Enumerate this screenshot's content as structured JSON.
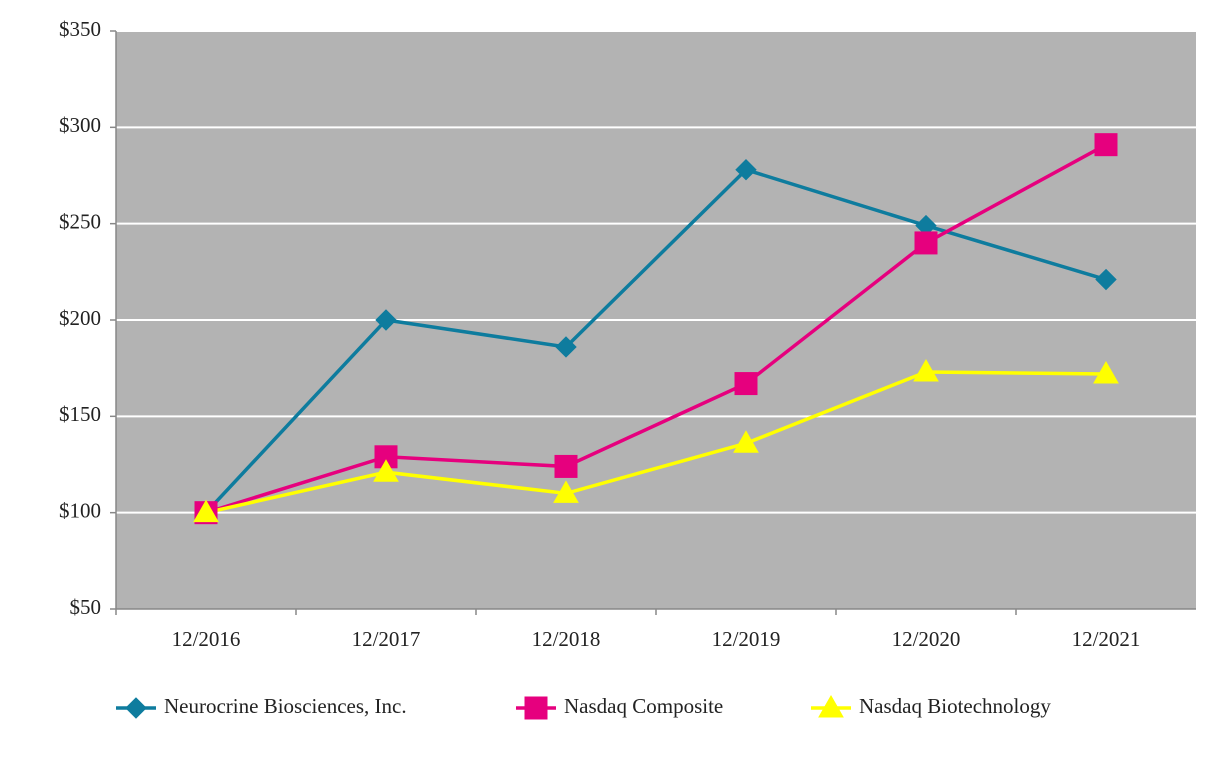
{
  "chart_data": {
    "type": "line",
    "categories": [
      "12/2016",
      "12/2017",
      "12/2018",
      "12/2019",
      "12/2020",
      "12/2021"
    ],
    "series": [
      {
        "name": "Neurocrine Biosciences, Inc.",
        "color": "#0e7c9e",
        "marker": "diamond",
        "values": [
          100,
          200,
          186,
          278,
          249,
          221
        ]
      },
      {
        "name": "Nasdaq Composite",
        "color": "#e6007e",
        "marker": "square",
        "values": [
          100,
          129,
          124,
          167,
          240,
          291
        ]
      },
      {
        "name": "Nasdaq Biotechnology",
        "color": "#ffff00",
        "marker": "triangle",
        "values": [
          100,
          121,
          110,
          136,
          173,
          172
        ]
      }
    ],
    "ylim": [
      50,
      350
    ],
    "yticks": [
      {
        "value": 50,
        "label": "$50"
      },
      {
        "value": 100,
        "label": "$100"
      },
      {
        "value": 150,
        "label": "$150"
      },
      {
        "value": 200,
        "label": "$200"
      },
      {
        "value": 250,
        "label": "$250"
      },
      {
        "value": 300,
        "label": "$300"
      },
      {
        "value": 350,
        "label": "$350"
      }
    ],
    "grid": true,
    "legend": "bottom"
  }
}
